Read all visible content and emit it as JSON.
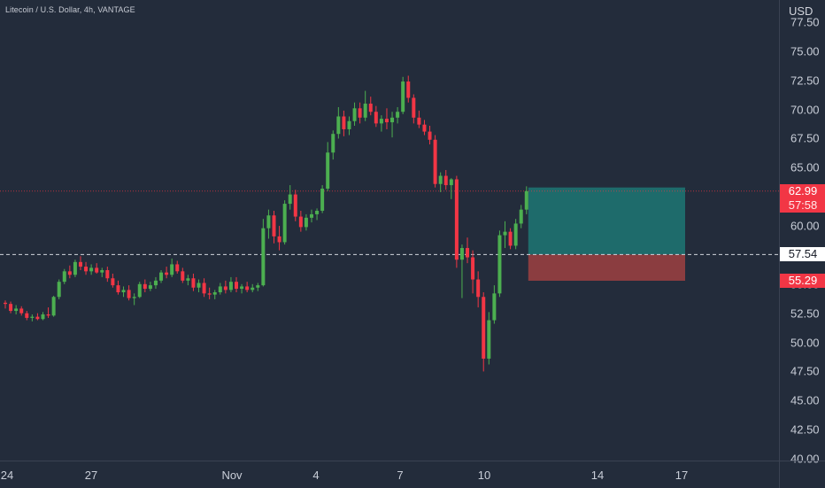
{
  "header": {
    "title": "Litecoin / U.S. Dollar, 4h, VANTAGE"
  },
  "price_axis": {
    "currency": "USD",
    "ticks": [
      "77.50",
      "75.00",
      "72.50",
      "70.00",
      "67.50",
      "65.00",
      "62.50",
      "60.00",
      "57.50",
      "55.00",
      "52.50",
      "50.00",
      "47.50",
      "45.00",
      "42.50",
      "40.00"
    ],
    "last_price": "62.99",
    "countdown": "57:58",
    "entry_label": "57.54",
    "stop_label": "55.29"
  },
  "time_axis": {
    "ticks": [
      "24",
      "27",
      "Nov",
      "4",
      "7",
      "10",
      "14",
      "17"
    ]
  },
  "colors": {
    "background": "#232c3b",
    "up": "#4caf50",
    "down": "#f23645",
    "target_zone": "#1e6b6b",
    "stop_zone": "#8b3d40"
  },
  "chart_data": {
    "type": "candlestick",
    "title": "Litecoin / U.S. Dollar, 4h, VANTAGE",
    "y_unit": "USD",
    "ylim": [
      40,
      78
    ],
    "interval": "4h",
    "position": {
      "entry": 57.54,
      "target": 63.3,
      "stop": 55.29,
      "side": "long"
    },
    "last_price": 62.99,
    "candles": [
      [
        53.4,
        53.6,
        52.9,
        53.3
      ],
      [
        53.3,
        53.5,
        52.5,
        52.7
      ],
      [
        52.7,
        53.2,
        52.4,
        52.9
      ],
      [
        52.9,
        53.1,
        52.3,
        52.5
      ],
      [
        52.5,
        52.7,
        51.9,
        52.1
      ],
      [
        52.1,
        52.4,
        51.8,
        52.2
      ],
      [
        52.2,
        52.5,
        51.9,
        52.0
      ],
      [
        52.0,
        52.6,
        51.9,
        52.4
      ],
      [
        52.4,
        53.0,
        52.1,
        52.3
      ],
      [
        52.3,
        54.0,
        52.2,
        53.9
      ],
      [
        53.9,
        55.4,
        53.7,
        55.2
      ],
      [
        55.2,
        56.3,
        55.0,
        56.1
      ],
      [
        56.1,
        56.6,
        55.5,
        55.8
      ],
      [
        55.8,
        57.1,
        55.6,
        56.9
      ],
      [
        56.9,
        57.4,
        56.2,
        56.5
      ],
      [
        56.5,
        56.9,
        55.8,
        56.1
      ],
      [
        56.1,
        56.7,
        55.8,
        56.4
      ],
      [
        56.4,
        56.8,
        55.9,
        56.0
      ],
      [
        56.0,
        56.4,
        55.6,
        56.2
      ],
      [
        56.2,
        56.5,
        55.2,
        55.5
      ],
      [
        55.5,
        55.9,
        54.7,
        54.9
      ],
      [
        54.9,
        55.3,
        54.1,
        54.3
      ],
      [
        54.3,
        54.8,
        53.9,
        54.5
      ],
      [
        54.5,
        54.9,
        53.6,
        53.8
      ],
      [
        53.8,
        54.2,
        53.2,
        53.9
      ],
      [
        53.9,
        55.2,
        53.8,
        55.0
      ],
      [
        55.0,
        55.4,
        54.3,
        54.6
      ],
      [
        54.6,
        55.2,
        54.4,
        54.9
      ],
      [
        54.9,
        55.6,
        54.6,
        55.3
      ],
      [
        55.3,
        56.2,
        55.1,
        56.0
      ],
      [
        56.0,
        56.5,
        55.5,
        55.8
      ],
      [
        55.8,
        57.2,
        55.6,
        56.7
      ],
      [
        56.7,
        57.0,
        55.9,
        56.1
      ],
      [
        56.1,
        56.4,
        55.1,
        55.3
      ],
      [
        55.3,
        55.8,
        54.9,
        55.5
      ],
      [
        55.5,
        55.9,
        54.4,
        54.7
      ],
      [
        54.7,
        55.4,
        54.3,
        55.1
      ],
      [
        55.1,
        55.5,
        53.9,
        54.2
      ],
      [
        54.2,
        54.7,
        53.7,
        54.1
      ],
      [
        54.1,
        54.5,
        53.7,
        54.3
      ],
      [
        54.3,
        55.1,
        54.1,
        54.8
      ],
      [
        54.8,
        55.3,
        54.2,
        54.5
      ],
      [
        54.5,
        55.6,
        54.3,
        55.2
      ],
      [
        55.2,
        55.6,
        54.3,
        54.6
      ],
      [
        54.6,
        55.0,
        54.2,
        54.8
      ],
      [
        54.8,
        55.2,
        54.3,
        54.5
      ],
      [
        54.5,
        55.0,
        54.3,
        54.7
      ],
      [
        54.7,
        55.1,
        54.4,
        54.9
      ],
      [
        54.9,
        60.6,
        54.8,
        59.8
      ],
      [
        59.8,
        61.4,
        58.9,
        60.9
      ],
      [
        60.9,
        61.3,
        58.5,
        59.1
      ],
      [
        59.1,
        60.0,
        57.9,
        58.6
      ],
      [
        58.6,
        62.2,
        58.4,
        61.9
      ],
      [
        61.9,
        63.5,
        61.4,
        62.7
      ],
      [
        62.7,
        63.1,
        60.4,
        60.8
      ],
      [
        60.8,
        61.3,
        59.5,
        59.9
      ],
      [
        59.9,
        61.0,
        59.6,
        60.7
      ],
      [
        60.7,
        61.4,
        60.3,
        61.0
      ],
      [
        61.0,
        61.5,
        60.5,
        61.3
      ],
      [
        61.3,
        63.5,
        61.1,
        63.2
      ],
      [
        63.2,
        67.2,
        63.0,
        66.3
      ],
      [
        66.3,
        68.2,
        65.7,
        67.9
      ],
      [
        67.9,
        70.2,
        67.5,
        69.4
      ],
      [
        69.4,
        69.9,
        67.7,
        68.3
      ],
      [
        68.3,
        69.4,
        67.8,
        69.0
      ],
      [
        69.0,
        70.6,
        68.6,
        70.1
      ],
      [
        70.1,
        70.6,
        68.8,
        69.3
      ],
      [
        69.3,
        71.6,
        69.0,
        70.5
      ],
      [
        70.5,
        71.1,
        69.5,
        69.8
      ],
      [
        69.8,
        70.3,
        68.5,
        68.8
      ],
      [
        68.8,
        69.5,
        68.1,
        69.2
      ],
      [
        69.2,
        70.1,
        68.3,
        68.9
      ],
      [
        68.9,
        69.8,
        67.6,
        69.3
      ],
      [
        69.3,
        70.2,
        68.8,
        69.8
      ],
      [
        69.8,
        72.8,
        69.6,
        72.4
      ],
      [
        72.4,
        72.9,
        70.6,
        71.0
      ],
      [
        71.0,
        71.3,
        68.8,
        69.3
      ],
      [
        69.3,
        69.9,
        68.4,
        68.7
      ],
      [
        68.7,
        69.1,
        67.8,
        68.1
      ],
      [
        68.1,
        68.6,
        67.0,
        67.4
      ],
      [
        67.4,
        67.8,
        63.3,
        63.6
      ],
      [
        63.6,
        64.6,
        62.9,
        64.3
      ],
      [
        64.3,
        64.8,
        63.1,
        63.5
      ],
      [
        63.5,
        64.1,
        62.3,
        64.0
      ],
      [
        64.0,
        64.3,
        56.4,
        57.1
      ],
      [
        57.1,
        58.4,
        53.8,
        58.1
      ],
      [
        58.1,
        59.0,
        56.8,
        57.3
      ],
      [
        57.3,
        57.9,
        54.2,
        55.4
      ],
      [
        55.4,
        56.1,
        53.0,
        53.9
      ],
      [
        53.9,
        54.3,
        47.5,
        48.6
      ],
      [
        48.6,
        52.6,
        48.1,
        51.9
      ],
      [
        51.9,
        54.9,
        51.6,
        54.2
      ],
      [
        54.2,
        59.6,
        53.9,
        59.2
      ],
      [
        59.2,
        60.4,
        58.1,
        59.5
      ],
      [
        59.5,
        59.8,
        58.0,
        58.3
      ],
      [
        58.3,
        60.6,
        58.0,
        60.2
      ],
      [
        60.2,
        61.8,
        59.8,
        61.4
      ],
      [
        61.4,
        63.4,
        61.0,
        62.99
      ]
    ]
  }
}
